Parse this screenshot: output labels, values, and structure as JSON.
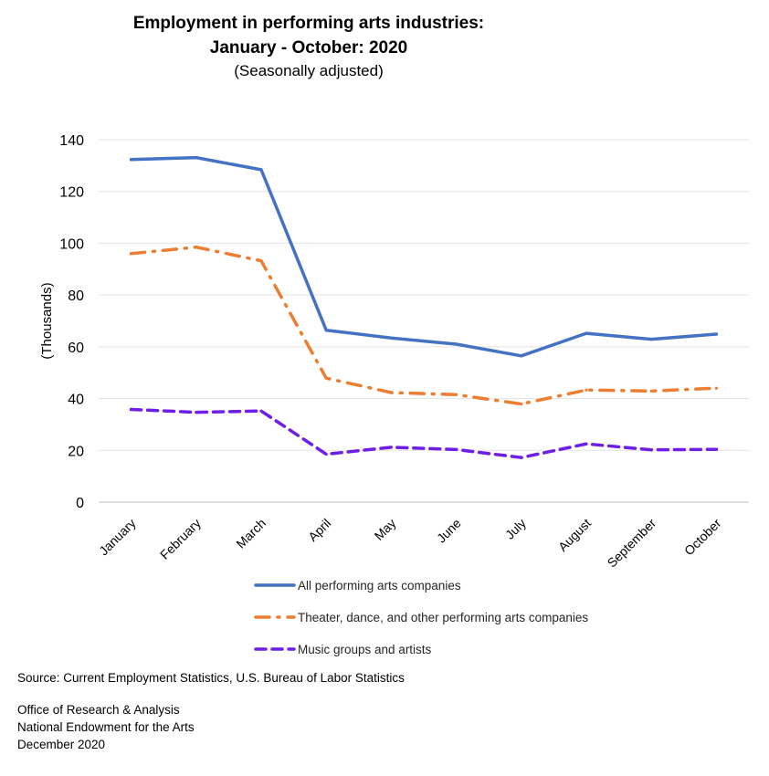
{
  "chart_data": {
    "type": "line",
    "title_line1": "Employment in performing arts industries:",
    "title_line2": "January - October: 2020",
    "subtitle": "(Seasonally adjusted)",
    "ylabel": "(Thousands)",
    "xlabel": "",
    "ylim": [
      0,
      140
    ],
    "yticks": [
      "0",
      "20",
      "40",
      "60",
      "80",
      "100",
      "120",
      "140"
    ],
    "grid": "horizontal",
    "legend_position": "bottom",
    "categories": [
      "January",
      "February",
      "March",
      "April",
      "May",
      "June",
      "July",
      "August",
      "September",
      "October"
    ],
    "series": [
      {
        "name": "All performing arts companies",
        "color": "#4472c4",
        "style": "solid",
        "values": [
          132.3,
          133.1,
          128.4,
          66.4,
          63.4,
          61.0,
          56.5,
          65.2,
          62.9,
          64.9
        ]
      },
      {
        "name": "Theater, dance, and other performing arts companies",
        "color": "#ed7d31",
        "style": "dash-dot",
        "values": [
          96.0,
          98.5,
          93.2,
          47.9,
          42.3,
          41.5,
          37.9,
          43.3,
          42.9,
          44.0
        ]
      },
      {
        "name": "Music groups and artists",
        "color": "#6e1ee6",
        "style": "dash",
        "values": [
          35.8,
          34.7,
          35.2,
          18.5,
          21.2,
          20.3,
          17.2,
          22.5,
          20.2,
          20.4
        ]
      }
    ]
  },
  "footer": {
    "source": "Source: Current Employment Statistics, U.S. Bureau of Labor Statistics",
    "org_line1": "Office of Research & Analysis",
    "org_line2": "National Endowment for the Arts",
    "date": "December 2020"
  }
}
